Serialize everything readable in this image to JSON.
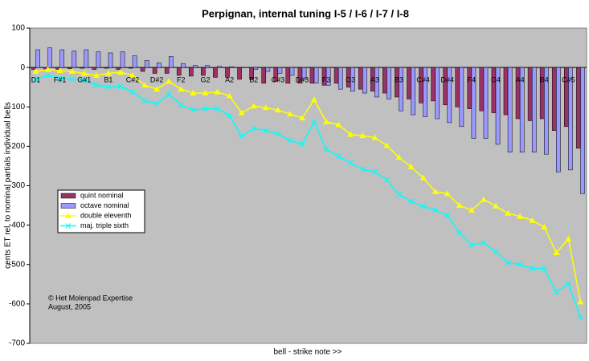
{
  "chart_data": {
    "type": "bar",
    "title": "Perpignan, internal tuning I-5 / I-6 / I-7 / I-8",
    "x_label": "bell - strike note >>",
    "y_label": "cents ET rel. to nominal partials individual bells",
    "annotation": [
      "© Het Molenpad Expertise",
      "August, 2005"
    ],
    "categories": [
      "D1",
      null,
      "F#1",
      null,
      "G#1",
      null,
      "B1",
      null,
      "C#2",
      null,
      "D#2",
      null,
      "F2",
      null,
      "G2",
      null,
      "A2",
      null,
      "B2",
      null,
      "C#3",
      null,
      "D#3",
      null,
      "F3",
      null,
      "G3",
      null,
      "A3",
      null,
      "B3",
      null,
      "C#4",
      null,
      "D#4",
      null,
      "F4",
      null,
      "G4",
      null,
      "A4",
      null,
      "B4",
      null,
      "C#5",
      null
    ],
    "ylim": [
      -700,
      100
    ],
    "yticks": [
      -700,
      -600,
      -500,
      -400,
      -300,
      -200,
      -100,
      0,
      100
    ],
    "legend": "left",
    "series": [
      {
        "name": "quint nominal",
        "type": "bar",
        "color": "#993366",
        "values": [
          -5,
          -5,
          -5,
          -3,
          -2,
          -5,
          -2,
          -5,
          -2,
          -10,
          -15,
          -15,
          -20,
          -22,
          -20,
          -25,
          -25,
          -30,
          -30,
          -40,
          -35,
          -40,
          -40,
          -40,
          -45,
          -40,
          -50,
          -55,
          -60,
          -65,
          -75,
          -80,
          -90,
          -85,
          -95,
          -100,
          -105,
          -110,
          -115,
          -120,
          -130,
          -135,
          -130,
          -160,
          -150,
          -205
        ]
      },
      {
        "name": "octave nominal",
        "type": "bar",
        "color": "#9999ff",
        "values": [
          45,
          50,
          45,
          42,
          45,
          40,
          37,
          40,
          30,
          18,
          12,
          28,
          10,
          5,
          5,
          3,
          2,
          0,
          -5,
          -10,
          -15,
          -20,
          -30,
          -40,
          -45,
          -55,
          -60,
          -65,
          -75,
          -80,
          -110,
          -120,
          -125,
          -130,
          -140,
          -150,
          -180,
          -180,
          -195,
          -215,
          -215,
          -215,
          -220,
          -265,
          -260,
          -320
        ]
      },
      {
        "name": "double eleventh",
        "type": "line",
        "marker": "triangle",
        "color": "#ffff00",
        "values": [
          -10,
          -5,
          -8,
          -10,
          -15,
          -20,
          -15,
          -12,
          -20,
          -45,
          -55,
          -35,
          -55,
          -65,
          -65,
          -62,
          -72,
          -115,
          -98,
          -102,
          -108,
          -118,
          -128,
          -82,
          -138,
          -145,
          -170,
          -173,
          -178,
          -198,
          -228,
          -252,
          -280,
          -315,
          -320,
          -350,
          -362,
          -335,
          -352,
          -370,
          -378,
          -388,
          -405,
          -470,
          -435,
          -595
        ]
      },
      {
        "name": "maj. triple sixth",
        "type": "line",
        "marker": "x",
        "color": "#00ffff",
        "values": [
          -30,
          -20,
          -28,
          -30,
          -32,
          -45,
          -50,
          -48,
          -62,
          -85,
          -92,
          -68,
          -95,
          -108,
          -105,
          -105,
          -122,
          -175,
          -155,
          -160,
          -168,
          -185,
          -195,
          -138,
          -208,
          -225,
          -242,
          -258,
          -265,
          -285,
          -322,
          -340,
          -352,
          -362,
          -375,
          -420,
          -450,
          -445,
          -468,
          -495,
          -500,
          -510,
          -510,
          -570,
          -548,
          -635
        ]
      }
    ]
  }
}
